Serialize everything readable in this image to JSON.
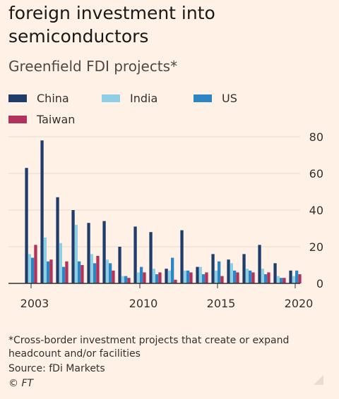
{
  "header": {
    "title": "foreign investment into semiconductors",
    "subtitle": "Greenfield FDI projects*"
  },
  "footer": {
    "footnote": "*Cross-border investment projects that create or expand headcount and/or facilities",
    "source": "Source: fDi Markets",
    "copyright": "© FT"
  },
  "colors": {
    "China": "#1e3d6b",
    "India": "#8fcfe6",
    "US": "#2d86c4",
    "Taiwan": "#b3325b",
    "axis": "#33302e",
    "grid": "#e6d9ce",
    "background": "#fff1e5"
  },
  "chart_data": {
    "type": "bar",
    "title": "Greenfield FDI projects*",
    "xlabel": "",
    "ylabel": "",
    "ylim": [
      0,
      80
    ],
    "yticks": [
      "0",
      "20",
      "40",
      "60",
      "80"
    ],
    "xticks": [
      "2003",
      "2010",
      "2015",
      "2020"
    ],
    "categories": [
      "2003",
      "2004",
      "2005",
      "2006",
      "2007",
      "2008",
      "2009",
      "2010",
      "2011",
      "2012",
      "2013",
      "2014",
      "2015",
      "2016",
      "2017",
      "2018",
      "2019",
      "2020"
    ],
    "legend_position": "top-left",
    "series": [
      {
        "name": "China",
        "values": [
          63,
          78,
          47,
          40,
          33,
          34,
          20,
          31,
          28,
          8,
          29,
          9,
          16,
          13,
          16,
          21,
          11,
          7
        ]
      },
      {
        "name": "India",
        "values": [
          16,
          25,
          22,
          32,
          16,
          13,
          4,
          6,
          8,
          7,
          7,
          9,
          7,
          11,
          8,
          8,
          4,
          4
        ]
      },
      {
        "name": "US",
        "values": [
          14,
          12,
          9,
          12,
          11,
          11,
          4,
          9,
          5,
          14,
          7,
          5,
          12,
          7,
          7,
          5,
          3,
          7
        ]
      },
      {
        "name": "Taiwan",
        "values": [
          21,
          13,
          12,
          10,
          15,
          7,
          3,
          6,
          6,
          2,
          6,
          6,
          4,
          6,
          6,
          6,
          3,
          5
        ]
      }
    ]
  }
}
